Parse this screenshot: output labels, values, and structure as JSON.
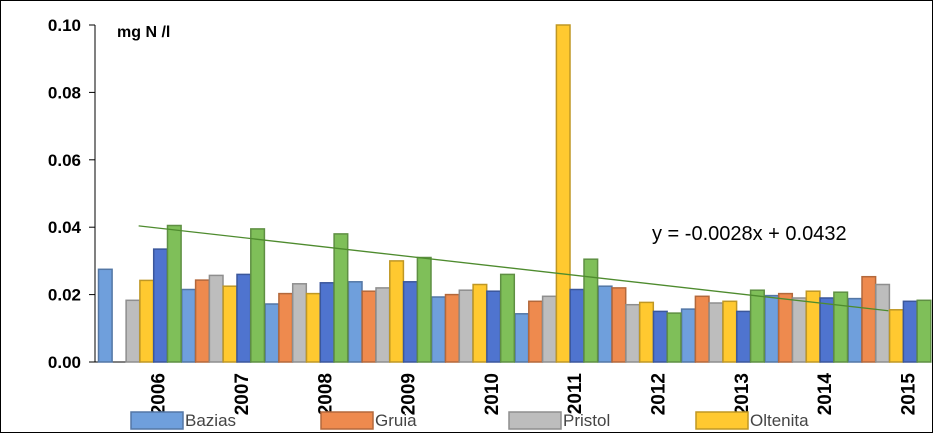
{
  "chart_data": {
    "type": "bar",
    "unit_label": "mg N /l",
    "categories": [
      "2006",
      "2007",
      "2008",
      "2009",
      "2010",
      "2011",
      "2012",
      "2013",
      "2014",
      "2015"
    ],
    "ylim": [
      0,
      0.1
    ],
    "yticks": [
      "0.00",
      "0.02",
      "0.04",
      "0.06",
      "0.08",
      "0.10"
    ],
    "grid": false,
    "legend_position": "bottom",
    "series": [
      {
        "name": "Bazias",
        "color": "#6f9fdc",
        "values": [
          0.0275,
          0.0215,
          0.0172,
          0.0238,
          0.0193,
          0.0143,
          0.0225,
          0.0157,
          0.0197,
          0.0188
        ]
      },
      {
        "name": "Gruia",
        "color": "#ee8a4e",
        "values": [
          null,
          0.0243,
          0.0203,
          0.021,
          0.02,
          0.018,
          0.022,
          0.0195,
          0.0203,
          0.0253
        ]
      },
      {
        "name": "Pristol",
        "color": "#bdbdbd",
        "values": [
          0.0183,
          0.0257,
          0.0232,
          0.022,
          0.0213,
          0.0195,
          0.017,
          0.0175,
          0.019,
          0.023
        ]
      },
      {
        "name": "Oltenita",
        "color": "#ffc930",
        "values": [
          0.0242,
          0.0225,
          0.0203,
          0.03,
          0.023,
          0.1,
          0.0177,
          0.018,
          0.021,
          0.0155
        ]
      },
      {
        "name": "",
        "color": "#4f74cf",
        "values": [
          0.0335,
          0.026,
          0.0235,
          0.0238,
          0.021,
          0.0215,
          0.015,
          0.015,
          0.019,
          0.018
        ]
      },
      {
        "name": "",
        "color": "#7fbf59",
        "values": [
          0.0405,
          0.0395,
          0.038,
          0.031,
          0.026,
          0.0305,
          0.0145,
          0.0213,
          0.0207,
          0.0183
        ]
      }
    ],
    "trendline": {
      "equation": "y = -0.0028x + 0.0432",
      "slope": -0.0028,
      "intercept": 0.0432,
      "color": "#4e8b2e"
    }
  }
}
